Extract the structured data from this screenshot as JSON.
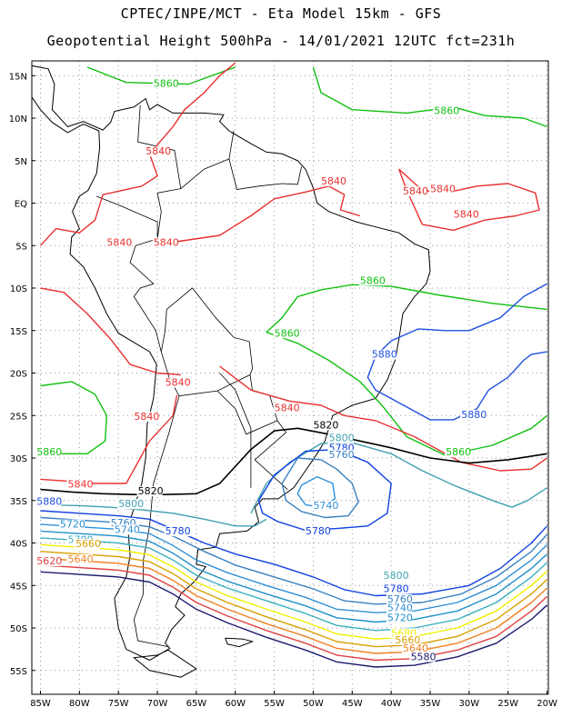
{
  "header": {
    "line1": "CPTEC/INPE/MCT -  Eta Model 15km - GFS",
    "line2": "Geopotential Height 500hPa - 14/01/2021 12UTC fct=231h"
  },
  "axes": {
    "lat_labels": [
      "15N",
      "10N",
      "5N",
      "EQ",
      "5S",
      "10S",
      "15S",
      "20S",
      "25S",
      "30S",
      "35S",
      "40S",
      "45S",
      "50S",
      "55S"
    ],
    "lon_labels": [
      "85W",
      "80W",
      "75W",
      "70W",
      "65W",
      "60W",
      "55W",
      "50W",
      "45W",
      "40W",
      "35W",
      "30W",
      "25W",
      "20W"
    ],
    "lon_range": [
      -85,
      -20
    ],
    "lat_range": [
      -58,
      16.5
    ],
    "grid": true
  },
  "colors": {
    "c5580": "#1a1a6e",
    "c5620": "#e04040",
    "c5640": "#f08020",
    "c5660": "#d8a000",
    "c5680": "#f0f000",
    "c5700": "#3cb0c0",
    "c5720": "#2090c8",
    "c5740": "#3090d8",
    "c5760": "#3880c0",
    "c5780": "#1040e0",
    "c5800": "#40a0b0",
    "c5820": "#000000",
    "c5840": "#e83030",
    "c5860": "#10c010",
    "c5880": "#2050e0"
  },
  "contours": [
    {
      "label": "5860",
      "value": 5860,
      "color": "c5860",
      "label_positions": [
        [
          -70.5,
          13.7
        ],
        [
          -34.5,
          10.5
        ],
        [
          -44,
          -9.5
        ],
        [
          -55,
          -15.7
        ],
        [
          -33,
          -29.7
        ],
        [
          -85.5,
          -29.7
        ]
      ]
    },
    {
      "label": "5840",
      "value": 5840,
      "color": "c5840",
      "label_positions": [
        [
          -71.5,
          5.7
        ],
        [
          -76.5,
          -5
        ],
        [
          -49,
          2.2
        ],
        [
          -38.5,
          1
        ],
        [
          -35,
          1.3
        ],
        [
          -32,
          -1.7
        ],
        [
          -70.5,
          -5
        ],
        [
          -69,
          -21.5
        ],
        [
          -73,
          -25.5
        ],
        [
          -55,
          -24.5
        ],
        [
          -81.5,
          -33.5
        ]
      ]
    },
    {
      "label": "5880",
      "value": 5880,
      "color": "c5880",
      "label_positions": [
        [
          -42.5,
          -18.2
        ],
        [
          -31,
          -25.3
        ],
        [
          -85.5,
          -35.5
        ]
      ]
    },
    {
      "label": "5820",
      "value": 5820,
      "color": "c5820",
      "label_positions": [
        [
          -50,
          -26.5
        ],
        [
          -72.5,
          -34.3
        ]
      ]
    },
    {
      "label": "5800",
      "value": 5800,
      "color": "c5800",
      "label_positions": [
        [
          -48,
          -28
        ],
        [
          -75,
          -35.8
        ],
        [
          -41,
          -44.2
        ]
      ]
    },
    {
      "label": "5780",
      "value": 5780,
      "color": "c5780",
      "label_positions": [
        [
          -48,
          -29.2
        ],
        [
          -69,
          -39
        ],
        [
          -51,
          -39
        ],
        [
          -41,
          -45.8
        ]
      ]
    },
    {
      "label": "5760",
      "value": 5760,
      "color": "c5760",
      "label_positions": [
        [
          -48,
          -30
        ],
        [
          -76,
          -38
        ],
        [
          -40.5,
          -47
        ]
      ]
    },
    {
      "label": "5740",
      "value": 5740,
      "color": "c5740",
      "label_positions": [
        [
          -50,
          -36
        ],
        [
          -75.5,
          -38.8
        ],
        [
          -40.5,
          -48
        ]
      ]
    },
    {
      "label": "5720",
      "value": 5720,
      "color": "c5720",
      "label_positions": [
        [
          -82.5,
          -38.2
        ],
        [
          -40.5,
          -49.2
        ]
      ]
    },
    {
      "label": "5700",
      "value": 5700,
      "color": "c5700",
      "label_positions": [
        [
          -81.5,
          -40
        ]
      ]
    },
    {
      "label": "5680",
      "value": 5680,
      "color": "c5680",
      "label_positions": [
        [
          -40,
          -51
        ]
      ]
    },
    {
      "label": "5660",
      "value": 5660,
      "color": "c5660",
      "label_positions": [
        [
          -80.5,
          -40.5
        ],
        [
          -39.5,
          -51.8
        ]
      ]
    },
    {
      "label": "5640",
      "value": 5640,
      "color": "c5640",
      "label_positions": [
        [
          -81.5,
          -42.3
        ],
        [
          -38.5,
          -52.8
        ]
      ]
    },
    {
      "label": "5620",
      "value": 5620,
      "color": "c5620",
      "label_positions": [
        [
          -85.5,
          -42.5
        ]
      ]
    },
    {
      "label": "5580",
      "value": 5580,
      "color": "c5580",
      "label_positions": [
        [
          -86.5,
          -43.2
        ],
        [
          -37.5,
          -53.8
        ]
      ]
    }
  ]
}
